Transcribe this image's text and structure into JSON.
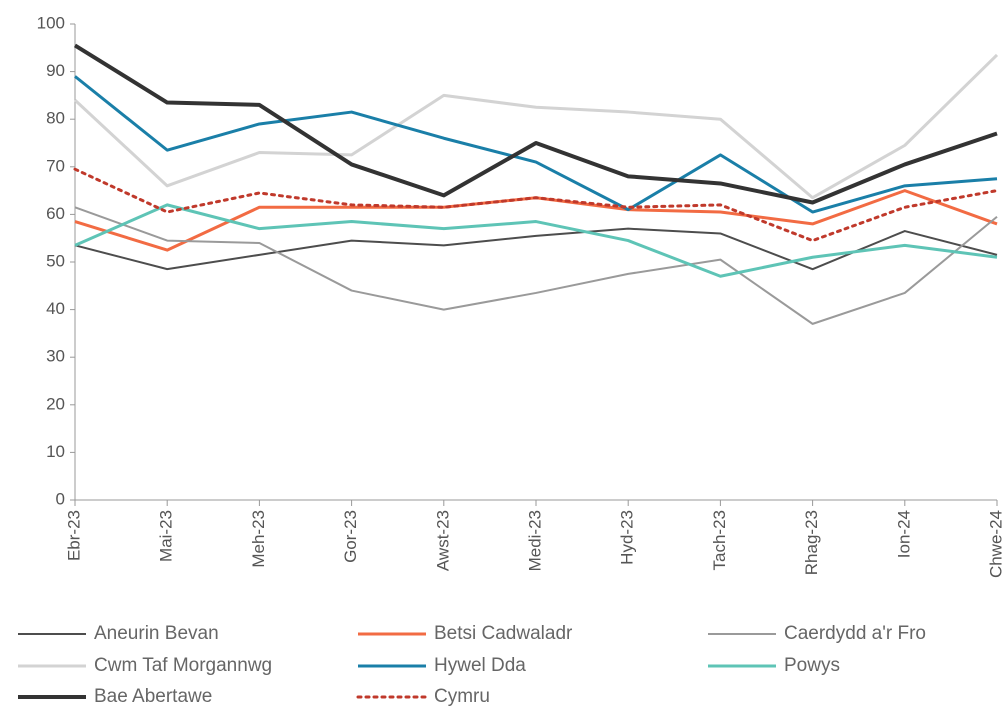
{
  "chart_data": {
    "type": "line",
    "categories": [
      "Ebr-23",
      "Mai-23",
      "Meh-23",
      "Gor-23",
      "Awst-23",
      "Medi-23",
      "Hyd-23",
      "Tach-23",
      "Rhag-23",
      "Ion-24",
      "Chwe-24"
    ],
    "ylim": [
      0,
      100
    ],
    "yticks": [
      0,
      10,
      20,
      30,
      40,
      50,
      60,
      70,
      80,
      90,
      100
    ],
    "grid": false,
    "legend": "bottom",
    "series": [
      {
        "name": "Aneurin Bevan",
        "color": "#4d4d4d",
        "width": 2,
        "values": [
          53.5,
          48.5,
          51.5,
          54.5,
          53.5,
          55.5,
          57,
          56,
          48.5,
          56.5,
          51.5
        ]
      },
      {
        "name": "Betsi Cadwaladr",
        "color": "#f26b43",
        "width": 3,
        "values": [
          58.5,
          52.5,
          61.5,
          61.5,
          61.5,
          63.5,
          61,
          60.5,
          58,
          65,
          58
        ]
      },
      {
        "name": "Caerdydd a'r Fro",
        "color": "#9a9a9a",
        "width": 2,
        "values": [
          61.5,
          54.5,
          54,
          44,
          40,
          43.5,
          47.5,
          50.5,
          37,
          43.5,
          59.5
        ]
      },
      {
        "name": "Cwm Taf Morgannwg",
        "color": "#d3d3d3",
        "width": 3,
        "values": [
          84,
          66,
          73,
          72.5,
          85,
          82.5,
          81.5,
          80,
          63.5,
          74.5,
          93.5
        ]
      },
      {
        "name": "Hywel Dda",
        "color": "#1a7fa8",
        "width": 3,
        "values": [
          89,
          73.5,
          79,
          81.5,
          76,
          71,
          61,
          72.5,
          60.5,
          66,
          67.5
        ]
      },
      {
        "name": "Powys",
        "color": "#5ec4b6",
        "width": 3,
        "values": [
          53.5,
          62,
          57,
          58.5,
          57,
          58.5,
          54.5,
          47,
          51,
          53.5,
          51
        ]
      },
      {
        "name": "Bae Abertawe",
        "color": "#333333",
        "width": 4,
        "values": [
          95.5,
          83.5,
          83,
          70.5,
          64,
          75,
          68,
          66.5,
          62.5,
          70.5,
          77
        ]
      },
      {
        "name": "Cymru",
        "color": "#c0392b",
        "width": 3,
        "dash": true,
        "values": [
          69.5,
          60.5,
          64.5,
          62,
          61.5,
          63.5,
          61.5,
          62,
          54.5,
          61.5,
          65
        ]
      }
    ]
  }
}
